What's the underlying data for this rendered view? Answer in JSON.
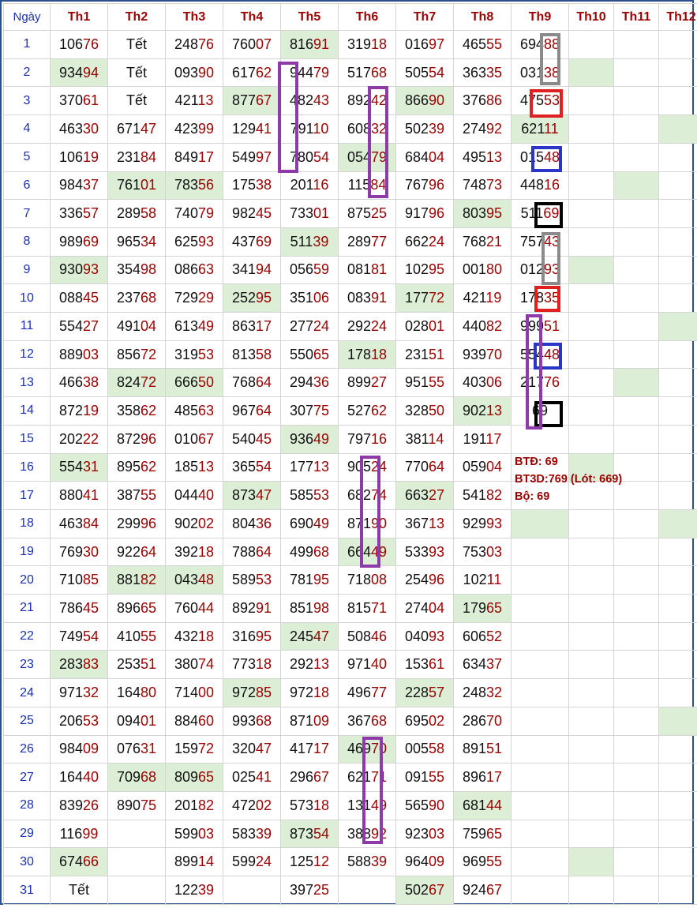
{
  "headers": [
    "Ngày",
    "Th1",
    "Th2",
    "Th3",
    "Th4",
    "Th5",
    "Th6",
    "Th7",
    "Th8",
    "Th9",
    "Th10",
    "Th11",
    "Th12"
  ],
  "rows": [
    {
      "day": "1",
      "cells": [
        "10676",
        "Tết",
        "24876",
        "76007",
        "81691",
        "31918",
        "01697",
        "46555",
        "69488",
        "",
        "",
        ""
      ]
    },
    {
      "day": "2",
      "cells": [
        "93494",
        "Tết",
        "09390",
        "61762",
        "94479",
        "51768",
        "50554",
        "36335",
        "03138",
        "",
        "",
        ""
      ]
    },
    {
      "day": "3",
      "cells": [
        "37061",
        "Tết",
        "42113",
        "87767",
        "48243",
        "89242",
        "86690",
        "37686",
        "47553",
        "",
        "",
        ""
      ]
    },
    {
      "day": "4",
      "cells": [
        "46330",
        "67147",
        "42399",
        "12941",
        "79110",
        "60832",
        "50239",
        "27492",
        "62111",
        "",
        "",
        ""
      ]
    },
    {
      "day": "5",
      "cells": [
        "10619",
        "23184",
        "84917",
        "54997",
        "78054",
        "05479",
        "68404",
        "49513",
        "01548",
        "",
        "",
        ""
      ]
    },
    {
      "day": "6",
      "cells": [
        "98437",
        "76101",
        "78356",
        "17538",
        "20116",
        "11584",
        "76796",
        "74873",
        "44816",
        "",
        "",
        ""
      ]
    },
    {
      "day": "7",
      "cells": [
        "33657",
        "28958",
        "74079",
        "98245",
        "73301",
        "87525",
        "91796",
        "80395",
        "51169",
        "",
        "",
        ""
      ]
    },
    {
      "day": "8",
      "cells": [
        "98969",
        "96534",
        "62593",
        "43769",
        "51139",
        "28977",
        "66224",
        "76821",
        "75743",
        "",
        "",
        ""
      ]
    },
    {
      "day": "9",
      "cells": [
        "93093",
        "35498",
        "08663",
        "34194",
        "05659",
        "08181",
        "10295",
        "00180",
        "01293",
        "",
        "",
        ""
      ]
    },
    {
      "day": "10",
      "cells": [
        "08845",
        "23768",
        "72929",
        "25295",
        "35106",
        "08391",
        "17772",
        "42119",
        "17835",
        "",
        "",
        ""
      ]
    },
    {
      "day": "11",
      "cells": [
        "55427",
        "49104",
        "61349",
        "86317",
        "27724",
        "29224",
        "02801",
        "44082",
        "99951",
        "",
        "",
        ""
      ]
    },
    {
      "day": "12",
      "cells": [
        "88903",
        "85672",
        "31953",
        "81358",
        "55065",
        "17818",
        "23151",
        "93970",
        "55448",
        "",
        "",
        ""
      ]
    },
    {
      "day": "13",
      "cells": [
        "46638",
        "82472",
        "66650",
        "76864",
        "29436",
        "89927",
        "95155",
        "40306",
        "21776",
        "",
        "",
        ""
      ]
    },
    {
      "day": "14",
      "cells": [
        "87219",
        "35862",
        "48563",
        "96764",
        "30775",
        "52762",
        "32850",
        "90213",
        "69",
        "",
        "",
        ""
      ]
    },
    {
      "day": "15",
      "cells": [
        "20222",
        "87296",
        "01067",
        "54045",
        "93649",
        "79716",
        "38114",
        "19117",
        "",
        "",
        "",
        ""
      ]
    },
    {
      "day": "16",
      "cells": [
        "55431",
        "89562",
        "18513",
        "36554",
        "17713",
        "90524",
        "77064",
        "05904",
        "",
        "",
        "",
        ""
      ]
    },
    {
      "day": "17",
      "cells": [
        "88041",
        "38755",
        "04440",
        "87347",
        "58553",
        "68274",
        "66327",
        "54182",
        "",
        "",
        "",
        ""
      ]
    },
    {
      "day": "18",
      "cells": [
        "46384",
        "29996",
        "90202",
        "80436",
        "69049",
        "87190",
        "36713",
        "92993",
        "",
        "",
        "",
        ""
      ]
    },
    {
      "day": "19",
      "cells": [
        "76930",
        "92264",
        "39218",
        "78864",
        "49968",
        "66449",
        "53393",
        "75303",
        "",
        "",
        "",
        ""
      ]
    },
    {
      "day": "20",
      "cells": [
        "71085",
        "88182",
        "04348",
        "58953",
        "78195",
        "71808",
        "25496",
        "10211",
        "",
        "",
        "",
        ""
      ]
    },
    {
      "day": "21",
      "cells": [
        "78645",
        "89665",
        "76044",
        "89291",
        "85198",
        "81571",
        "27404",
        "17965",
        "",
        "",
        "",
        ""
      ]
    },
    {
      "day": "22",
      "cells": [
        "74954",
        "41055",
        "43218",
        "31695",
        "24547",
        "50846",
        "04093",
        "60652",
        "",
        "",
        "",
        ""
      ]
    },
    {
      "day": "23",
      "cells": [
        "28383",
        "25351",
        "38074",
        "77318",
        "29213",
        "97140",
        "15361",
        "63437",
        "",
        "",
        "",
        ""
      ]
    },
    {
      "day": "24",
      "cells": [
        "97132",
        "16480",
        "71400",
        "97285",
        "97218",
        "49677",
        "22857",
        "24832",
        "",
        "",
        "",
        ""
      ]
    },
    {
      "day": "25",
      "cells": [
        "20653",
        "09401",
        "88460",
        "99368",
        "87109",
        "36768",
        "69502",
        "28670",
        "",
        "",
        "",
        ""
      ]
    },
    {
      "day": "26",
      "cells": [
        "98409",
        "07631",
        "15972",
        "32047",
        "41717",
        "46970",
        "00558",
        "89151",
        "",
        "",
        "",
        ""
      ]
    },
    {
      "day": "27",
      "cells": [
        "16440",
        "70968",
        "80965",
        "02541",
        "29667",
        "62171",
        "09155",
        "89617",
        "",
        "",
        "",
        ""
      ]
    },
    {
      "day": "28",
      "cells": [
        "83926",
        "89075",
        "20182",
        "47202",
        "57318",
        "13149",
        "56590",
        "68144",
        "",
        "",
        "",
        ""
      ]
    },
    {
      "day": "29",
      "cells": [
        "11699",
        "",
        "59903",
        "58339",
        "87354",
        "38892",
        "92303",
        "75965",
        "",
        "",
        "",
        ""
      ]
    },
    {
      "day": "30",
      "cells": [
        "67466",
        "",
        "89914",
        "59924",
        "12512",
        "58839",
        "96409",
        "96955",
        "",
        "",
        "",
        ""
      ]
    },
    {
      "day": "31",
      "cells": [
        "Tết",
        "",
        "12239",
        "",
        "39725",
        "",
        "50267",
        "92467",
        "",
        "",
        "",
        ""
      ]
    }
  ],
  "highlights": [
    [
      1,
      5
    ],
    [
      2,
      1
    ],
    [
      2,
      10
    ],
    [
      3,
      4
    ],
    [
      3,
      7
    ],
    [
      4,
      9
    ],
    [
      4,
      12
    ],
    [
      5,
      6
    ],
    [
      6,
      2
    ],
    [
      6,
      3
    ],
    [
      6,
      11
    ],
    [
      7,
      8
    ],
    [
      8,
      5
    ],
    [
      9,
      1
    ],
    [
      9,
      10
    ],
    [
      10,
      4
    ],
    [
      10,
      7
    ],
    [
      11,
      12
    ],
    [
      12,
      6
    ],
    [
      13,
      2
    ],
    [
      13,
      3
    ],
    [
      13,
      11
    ],
    [
      14,
      8
    ],
    [
      15,
      5
    ],
    [
      16,
      1
    ],
    [
      16,
      10
    ],
    [
      17,
      4
    ],
    [
      17,
      7
    ],
    [
      18,
      9
    ],
    [
      18,
      12
    ],
    [
      19,
      6
    ],
    [
      20,
      2
    ],
    [
      20,
      3
    ],
    [
      21,
      8
    ],
    [
      22,
      5
    ],
    [
      23,
      1
    ],
    [
      24,
      4
    ],
    [
      24,
      7
    ],
    [
      25,
      12
    ],
    [
      26,
      6
    ],
    [
      27,
      2
    ],
    [
      27,
      3
    ],
    [
      28,
      8
    ],
    [
      29,
      5
    ],
    [
      30,
      1
    ],
    [
      30,
      10
    ],
    [
      31,
      7
    ]
  ],
  "note": {
    "line1": "BTĐ: 69",
    "line2": "BT3D:769 (Lót: 669)",
    "line3": "Bộ: 69"
  },
  "colors": {
    "header_text": "#9a0000",
    "day_text": "#1a2fb8",
    "highlight_bg": "#dcefd6",
    "mark_gray": "#8a8a8a",
    "mark_red": "#e02020",
    "mark_blue": "#2c36c6",
    "mark_black": "#000000",
    "mark_purple": "#8e3aa8"
  }
}
